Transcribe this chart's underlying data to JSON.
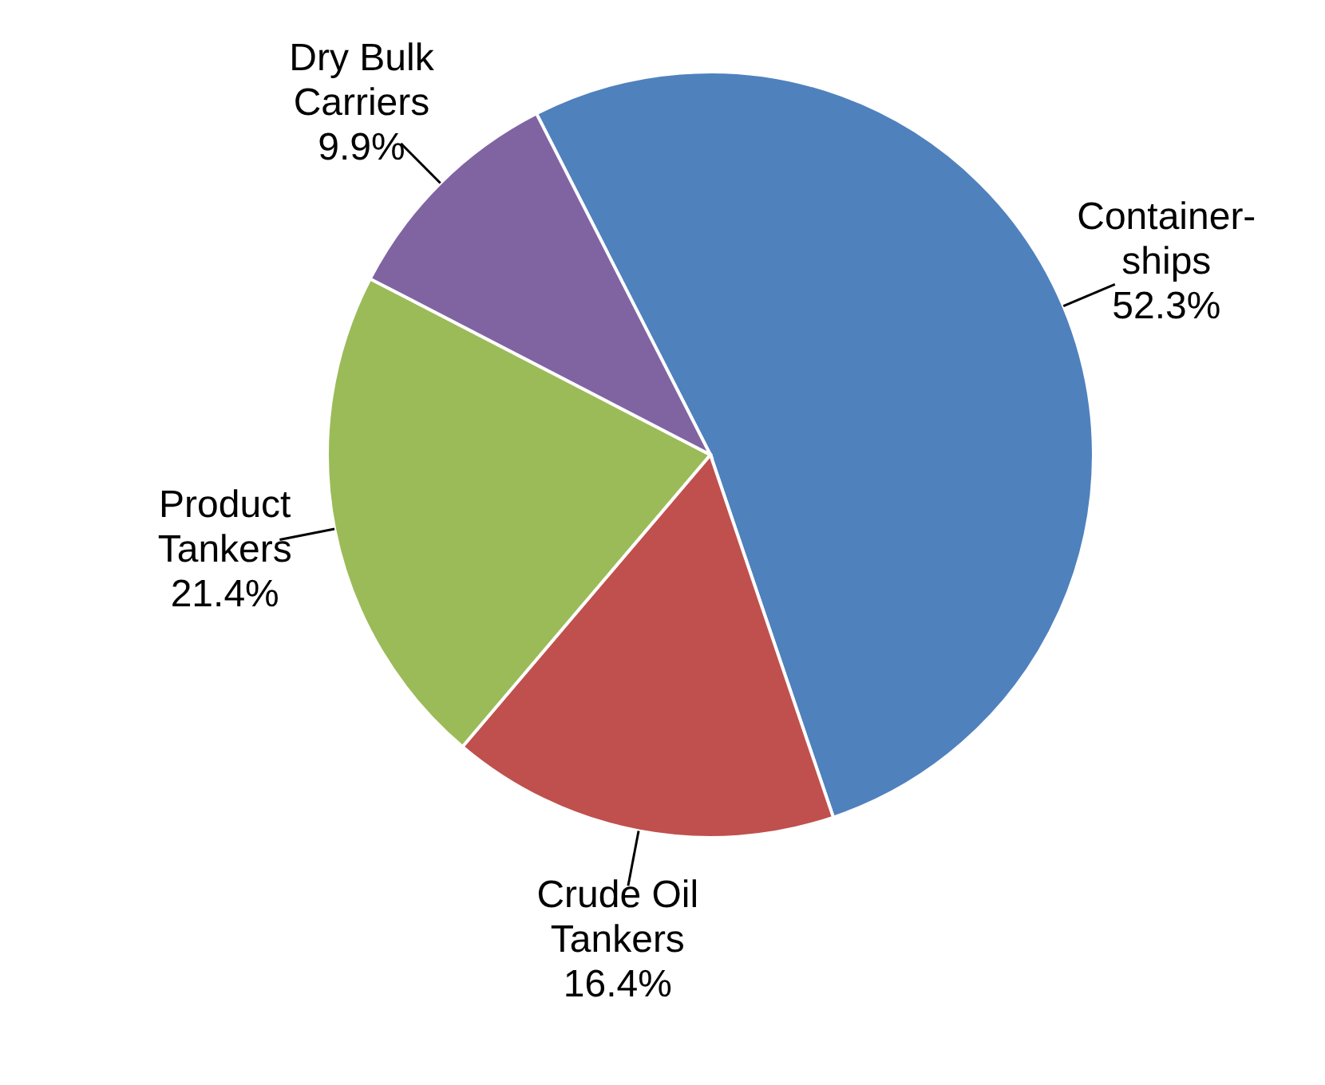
{
  "chart_data": {
    "type": "pie",
    "categories": [
      "Container-\nships",
      "Crude Oil\nTankers",
      "Product\nTankers",
      "Dry Bulk\nCarriers"
    ],
    "values": [
      52.3,
      16.4,
      21.4,
      9.9
    ],
    "value_labels": [
      "52.3%",
      "16.4%",
      "21.4%",
      "9.9%"
    ],
    "colors": [
      "#4f81bd",
      "#c0504d",
      "#9bbb59",
      "#8064a2"
    ]
  }
}
